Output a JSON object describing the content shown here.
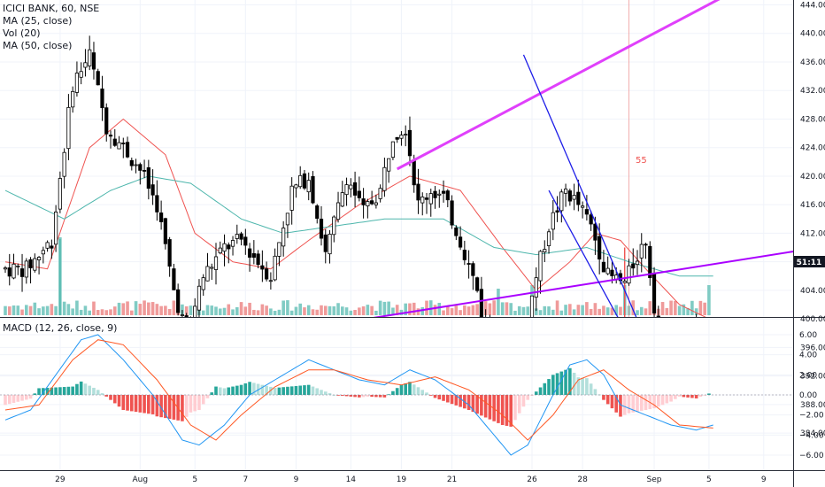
{
  "header": {
    "symbol": "ICICI BANK, 60, NSE",
    "indicators": [
      "MA (25, close)",
      "Vol (20)",
      "MA (50, close)"
    ]
  },
  "macd_label": "MACD (12, 26, close, 9)",
  "price_tag": "51:11",
  "annotation": "55",
  "colors": {
    "bull": "#ffffff",
    "bear": "#000000",
    "wick": "#000000",
    "ma25": "#ef5350",
    "ma50": "#4db6ac",
    "vol_up": "#80cbc4",
    "vol_down": "#ef9a9a",
    "trend_magenta": "#e040fb",
    "trend_purple": "#aa00ff",
    "zone_fill": "#f48fdc",
    "channel": "#1e1ee8",
    "macd": "#2196f3",
    "signal": "#ff5722",
    "hist_up_strong": "#26a69a",
    "hist_up_weak": "#b2dfdb",
    "hist_down_strong": "#ef5350",
    "hist_down_weak": "#ffcdd2"
  },
  "chart_data": [
    {
      "type": "candlestick",
      "title": "ICICI BANK, 60, NSE",
      "ylim": [
        380,
        446
      ],
      "y_ticks": [
        384,
        388,
        392,
        396,
        400,
        404,
        408,
        412,
        416,
        420,
        424,
        428,
        432,
        436,
        440,
        444
      ],
      "x_ticks": [
        "29",
        "Aug",
        "5",
        "7",
        "9",
        "14",
        "19",
        "21",
        "26",
        "28",
        "Sep",
        "5",
        "9"
      ],
      "close_anchors": [
        [
          0,
          407
        ],
        [
          6,
          407
        ],
        [
          12,
          411
        ],
        [
          17,
          433
        ],
        [
          21,
          437
        ],
        [
          25,
          427
        ],
        [
          29,
          424
        ],
        [
          33,
          421
        ],
        [
          37,
          416
        ],
        [
          41,
          404
        ],
        [
          44,
          398
        ],
        [
          48,
          406
        ],
        [
          53,
          410
        ],
        [
          57,
          411
        ],
        [
          61,
          408
        ],
        [
          64,
          406
        ],
        [
          69,
          418
        ],
        [
          73,
          420
        ],
        [
          77,
          409
        ],
        [
          82,
          420
        ],
        [
          86,
          415
        ],
        [
          90,
          418
        ],
        [
          93,
          426
        ],
        [
          96,
          427
        ],
        [
          99,
          416
        ],
        [
          102,
          418
        ],
        [
          105,
          417
        ],
        [
          109,
          411
        ],
        [
          113,
          404
        ],
        [
          117,
          392
        ],
        [
          121,
          394
        ],
        [
          124,
          397
        ],
        [
          127,
          406
        ],
        [
          130,
          413
        ],
        [
          134,
          418
        ],
        [
          137,
          416
        ],
        [
          140,
          413
        ],
        [
          144,
          406
        ],
        [
          148,
          405
        ],
        [
          151,
          409
        ],
        [
          153,
          411
        ],
        [
          155,
          402
        ],
        [
          158,
          395
        ],
        [
          160,
          390
        ],
        [
          162,
          393
        ],
        [
          165,
          398
        ],
        [
          167,
          397
        ]
      ],
      "series": [
        {
          "name": "MA (25, close)",
          "values": [
            [
              0,
              408
            ],
            [
              10,
              407
            ],
            [
              20,
              424
            ],
            [
              28,
              428
            ],
            [
              38,
              423
            ],
            [
              45,
              412
            ],
            [
              54,
              408
            ],
            [
              63,
              407
            ],
            [
              72,
              411
            ],
            [
              84,
              416
            ],
            [
              96,
              420
            ],
            [
              108,
              418
            ],
            [
              118,
              410
            ],
            [
              126,
              404
            ],
            [
              134,
              408
            ],
            [
              140,
              412
            ],
            [
              146,
              411
            ],
            [
              152,
              407
            ],
            [
              160,
              402
            ],
            [
              167,
              400
            ]
          ]
        },
        {
          "name": "MA (50, close)",
          "values": [
            [
              0,
              418
            ],
            [
              14,
              414
            ],
            [
              25,
              418
            ],
            [
              34,
              420
            ],
            [
              44,
              419
            ],
            [
              56,
              414
            ],
            [
              66,
              412
            ],
            [
              78,
              413
            ],
            [
              90,
              414
            ],
            [
              104,
              414
            ],
            [
              116,
              410
            ],
            [
              126,
              409
            ],
            [
              138,
              410
            ],
            [
              148,
              408
            ],
            [
              160,
              406
            ],
            [
              167,
              406
            ]
          ]
        }
      ],
      "zone": [
        391,
        393
      ],
      "trendlines": [
        {
          "name": "upper-magenta",
          "from": [
            93,
            421
          ],
          "to": [
            170,
            445
          ]
        },
        {
          "name": "lower-purple",
          "from": [
            0,
            392
          ],
          "to": [
            193,
            410
          ]
        },
        {
          "name": "channel-upper",
          "from": [
            123,
            437
          ],
          "to": [
            163,
            382
          ]
        },
        {
          "name": "channel-lower",
          "from": [
            129,
            418
          ],
          "to": [
            164,
            380
          ]
        }
      ]
    },
    {
      "type": "bar",
      "title": "Vol (20)",
      "note": "relative volume per bar"
    },
    {
      "type": "line",
      "title": "MACD (12, 26, close, 9)",
      "ylim": [
        -6.9,
        7
      ],
      "y_ticks": [
        6.0,
        4.0,
        2.0,
        0.0,
        -2.0,
        -4.0,
        -6.0
      ],
      "y_tick_labels": [
        "6.00",
        "4.00",
        "2.00",
        "0.00",
        "−2.00",
        "−4.00",
        "−6.00"
      ],
      "series": [
        {
          "name": "MACD",
          "values": [
            [
              0,
              -2.5
            ],
            [
              6,
              -1.5
            ],
            [
              12,
              2.0
            ],
            [
              18,
              5.5
            ],
            [
              22,
              6.0
            ],
            [
              28,
              3.5
            ],
            [
              35,
              0
            ],
            [
              42,
              -4.5
            ],
            [
              46,
              -5.0
            ],
            [
              52,
              -3.0
            ],
            [
              58,
              0
            ],
            [
              66,
              2.0
            ],
            [
              72,
              3.5
            ],
            [
              78,
              2.5
            ],
            [
              84,
              1.5
            ],
            [
              90,
              1.0
            ],
            [
              96,
              2.5
            ],
            [
              102,
              1.5
            ],
            [
              110,
              -1.0
            ],
            [
              116,
              -4.0
            ],
            [
              120,
              -6.0
            ],
            [
              124,
              -5.0
            ],
            [
              130,
              0
            ],
            [
              134,
              3.0
            ],
            [
              138,
              3.5
            ],
            [
              142,
              2.0
            ],
            [
              146,
              -1.0
            ],
            [
              152,
              -2.0
            ],
            [
              158,
              -3.0
            ],
            [
              164,
              -3.5
            ],
            [
              168,
              -3.0
            ]
          ]
        },
        {
          "name": "Signal",
          "values": [
            [
              0,
              -1.5
            ],
            [
              8,
              -1.0
            ],
            [
              16,
              3.5
            ],
            [
              22,
              5.5
            ],
            [
              28,
              5.0
            ],
            [
              36,
              1.5
            ],
            [
              44,
              -3.0
            ],
            [
              50,
              -4.5
            ],
            [
              56,
              -2.0
            ],
            [
              64,
              0.8
            ],
            [
              72,
              2.5
            ],
            [
              78,
              2.5
            ],
            [
              86,
              1.5
            ],
            [
              94,
              1.0
            ],
            [
              102,
              1.8
            ],
            [
              110,
              0.5
            ],
            [
              118,
              -2.0
            ],
            [
              124,
              -4.5
            ],
            [
              130,
              -2.0
            ],
            [
              136,
              1.5
            ],
            [
              142,
              2.5
            ],
            [
              148,
              0.5
            ],
            [
              154,
              -1.0
            ],
            [
              160,
              -3.0
            ],
            [
              168,
              -3.3
            ]
          ]
        }
      ]
    }
  ]
}
